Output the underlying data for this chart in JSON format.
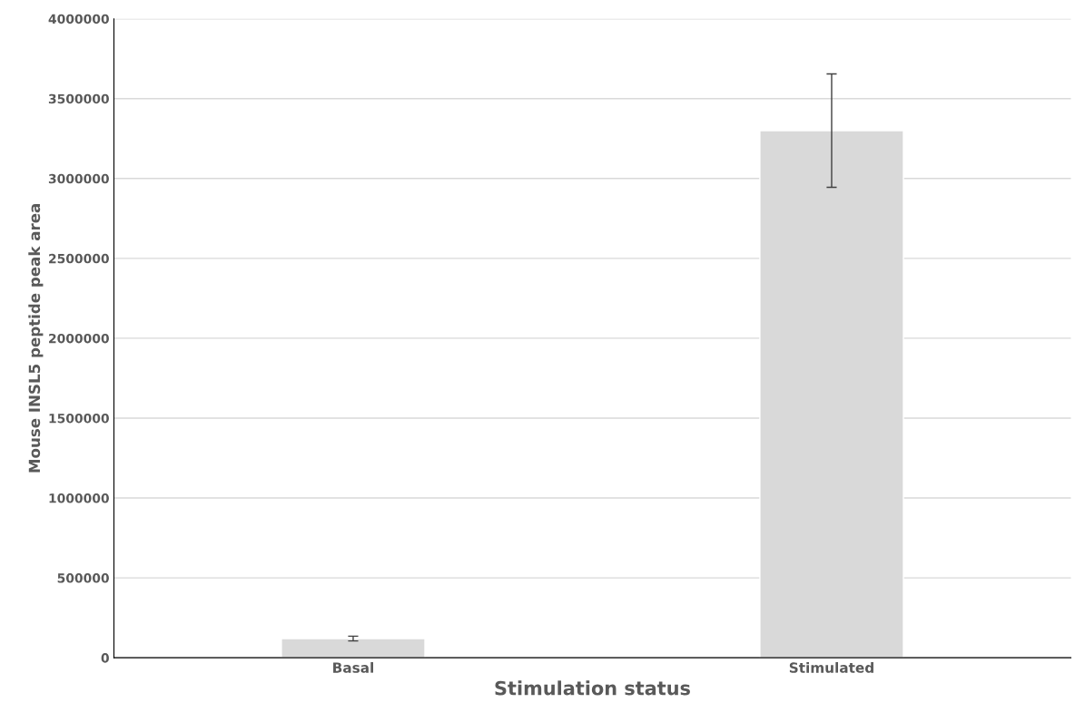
{
  "chart_data": {
    "type": "bar",
    "xlabel": "Stimulation status",
    "ylabel": "Mouse INSL5 peptide peak area",
    "categories": [
      "Basal",
      "Stimulated"
    ],
    "values": [
      120000,
      3300000
    ],
    "errors": [
      15000,
      355000
    ],
    "color": "#d9d9d9",
    "ylim": [
      0,
      4000000
    ],
    "yticks": [
      0,
      500000,
      1000000,
      1500000,
      2000000,
      2500000,
      3000000,
      3500000,
      4000000
    ],
    "grid": "y",
    "legend": false
  }
}
